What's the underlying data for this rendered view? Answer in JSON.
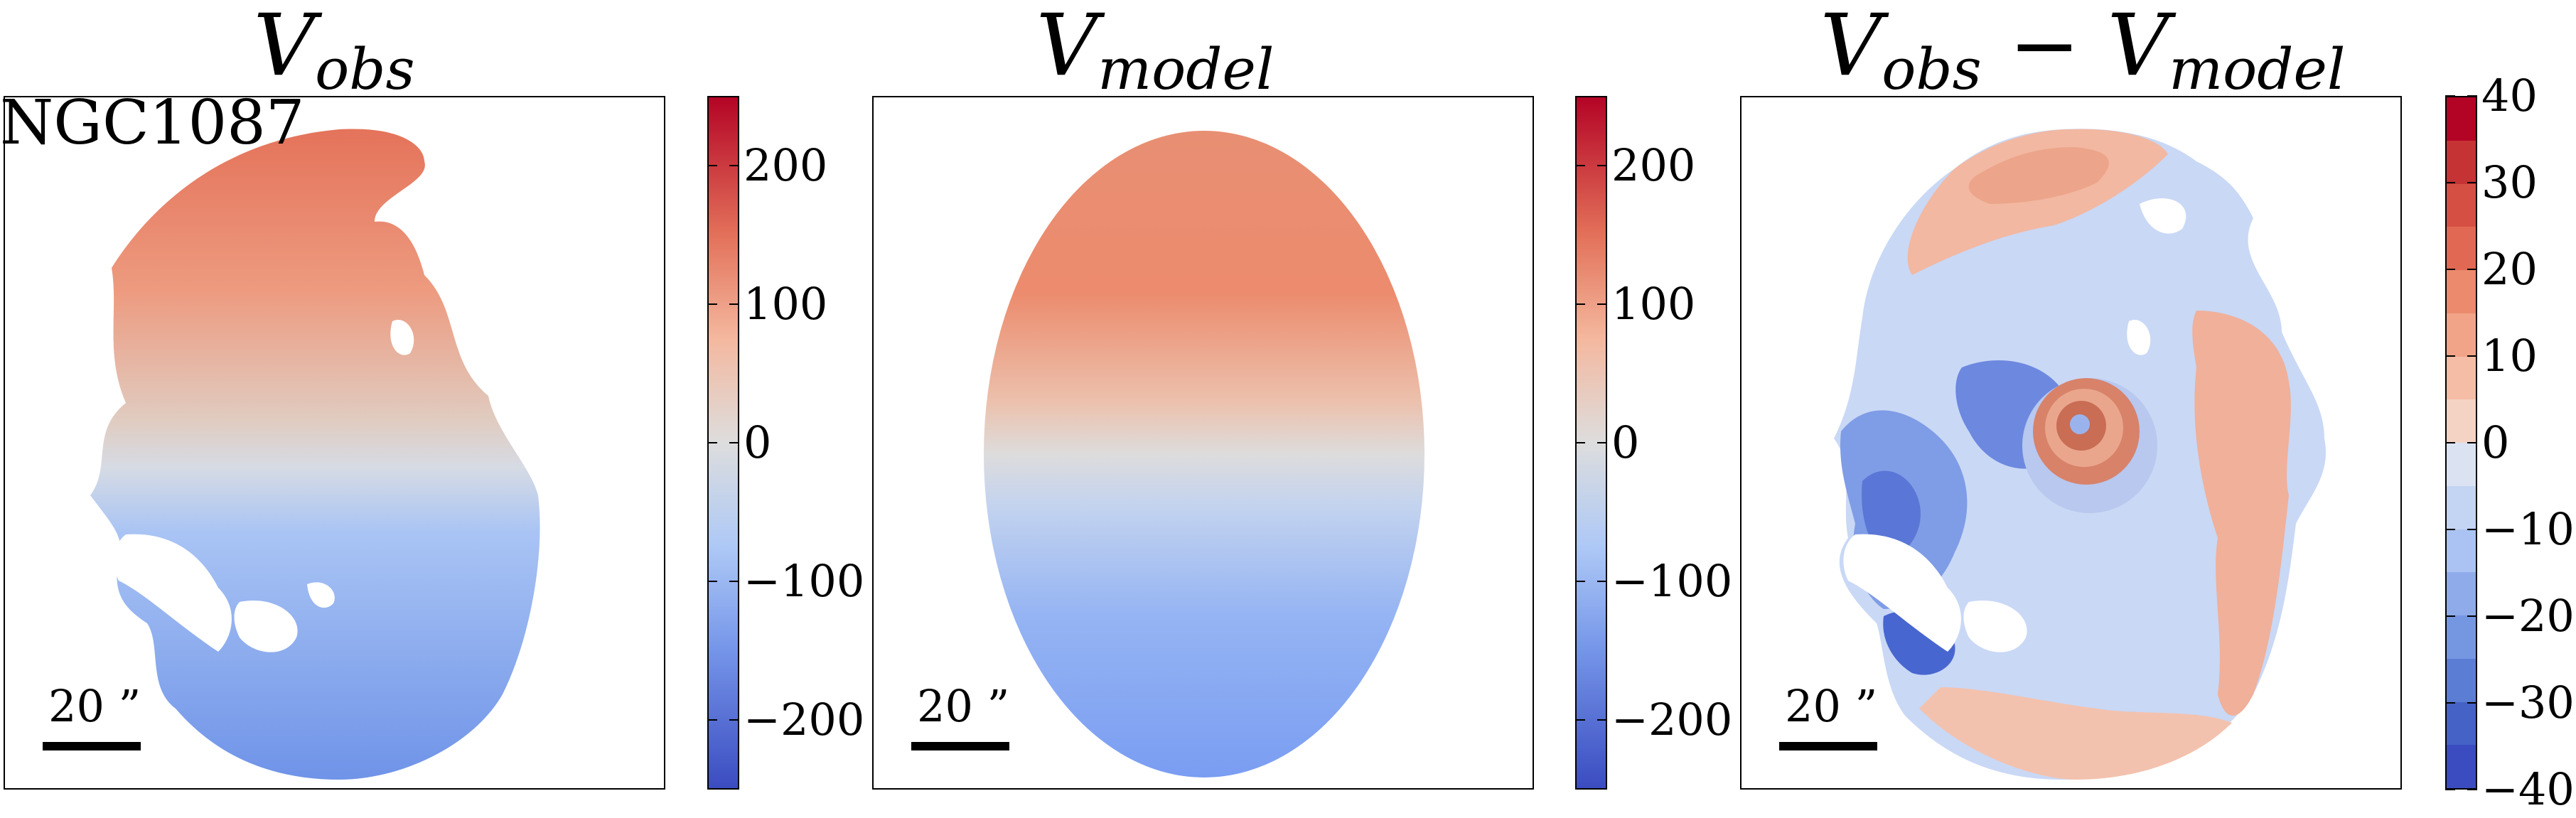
{
  "chart_data": [
    {
      "type": "heatmap",
      "title": "V_obs",
      "title_main": "V",
      "title_sub": "obs",
      "galaxy": "NGC1087",
      "scale_label": "20 ”",
      "colormap": "coolwarm",
      "clim": [
        -250,
        250
      ],
      "colorbar_ticks": [
        200,
        100,
        0,
        -100,
        -200
      ],
      "colorbar_ticklabels": [
        "200",
        "100",
        "0",
        "−100",
        "−200"
      ]
    },
    {
      "type": "heatmap",
      "title": "V_model",
      "title_main": "V",
      "title_sub": "model",
      "scale_label": "20 ”",
      "colormap": "coolwarm",
      "clim": [
        -250,
        250
      ],
      "colorbar_ticks": [
        200,
        100,
        0,
        -100,
        -200
      ],
      "colorbar_ticklabels": [
        "200",
        "100",
        "0",
        "−100",
        "−200"
      ]
    },
    {
      "type": "heatmap",
      "title": "V_obs − V_model",
      "title_main": "V",
      "title_sub": "obs",
      "title_op": "−",
      "title_main2": "V",
      "title_sub2": "model",
      "scale_label": "20 ”",
      "colormap": "coolwarm (discrete)",
      "clim": [
        -40,
        40
      ],
      "colorbar_levels": 16,
      "colorbar_ticks": [
        40,
        30,
        20,
        10,
        0,
        -10,
        -20,
        -30,
        -40
      ],
      "colorbar_ticklabels": [
        "40",
        "30",
        "20",
        "10",
        "0",
        "−10",
        "−20",
        "−30",
        "−40"
      ]
    }
  ]
}
